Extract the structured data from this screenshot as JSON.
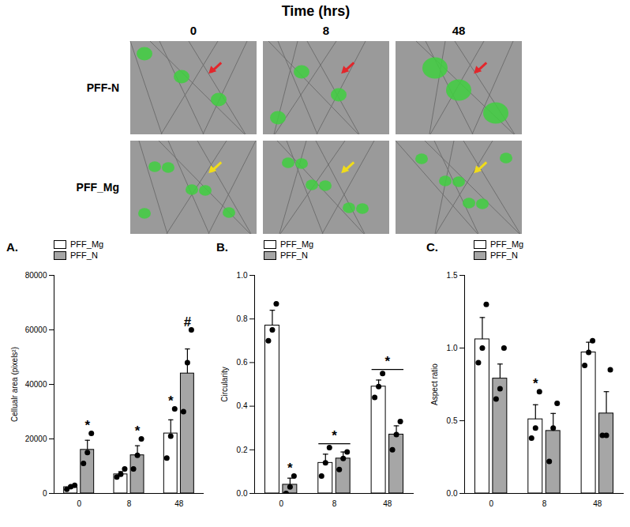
{
  "image_panel": {
    "title": "Time (hrs)",
    "columns": [
      "0",
      "8",
      "48"
    ],
    "rows": [
      "PFF-N",
      "PFF_Mg"
    ]
  },
  "chart_data": [
    {
      "type": "bar",
      "title": "A.",
      "ylabel": "Cellualr area (pixels²)",
      "categories": [
        "0",
        "8",
        "48"
      ],
      "ylim": [
        0,
        80000
      ],
      "yticks": [
        0,
        20000,
        40000,
        60000,
        80000
      ],
      "legend": "top",
      "series": [
        {
          "name": "PFF_Mg",
          "color": "#ffffff",
          "values": [
            2300,
            7000,
            22000
          ],
          "errors": [
            500,
            1000,
            5000
          ],
          "points": [
            [
              1500,
              2500,
              3000
            ],
            [
              6000,
              7000,
              9000
            ],
            [
              13000,
              21000,
              31000
            ]
          ]
        },
        {
          "name": "PFF_N",
          "color": "#a6a6a6",
          "values": [
            16000,
            14000,
            44000
          ],
          "errors": [
            3500,
            3500,
            9000
          ],
          "points": [
            [
              11000,
              15000,
              22000
            ],
            [
              9000,
              14000,
              20000
            ],
            [
              30000,
              48000,
              60000
            ]
          ]
        }
      ],
      "annotations": [
        {
          "category": "0",
          "series": [
            "PFF_N"
          ],
          "text": "*"
        },
        {
          "category": "8",
          "series": [
            "PFF_N"
          ],
          "text": "*"
        },
        {
          "category": "48",
          "series": [
            "PFF_Mg"
          ],
          "text": "*"
        },
        {
          "category": "48",
          "series": [
            "PFF_N"
          ],
          "text": "#"
        }
      ]
    },
    {
      "type": "bar",
      "title": "B.",
      "ylabel": "Circularity",
      "categories": [
        "0",
        "8",
        "48"
      ],
      "ylim": [
        0,
        1
      ],
      "yticks": [
        {
          "value": 0,
          "label": "0.0"
        },
        {
          "value": 0.2,
          "label": "0.2"
        },
        {
          "value": 0.4,
          "label": "0.4"
        },
        {
          "value": 0.6,
          "label": "0.6"
        },
        {
          "value": 0.8,
          "label": "0.8"
        },
        {
          "value": 1,
          "label": "1.0"
        }
      ],
      "legend": "top",
      "series": [
        {
          "name": "PFF_Mg",
          "color": "#ffffff",
          "values": [
            0.77,
            0.14,
            0.49
          ],
          "errors": [
            0.07,
            0.04,
            0.03
          ],
          "points": [
            [
              0.7,
              0.75,
              0.87
            ],
            [
              0.08,
              0.14,
              0.21
            ],
            [
              0.44,
              0.49,
              0.55
            ]
          ]
        },
        {
          "name": "PFF_N",
          "color": "#a6a6a6",
          "values": [
            0.04,
            0.16,
            0.27
          ],
          "errors": [
            0.03,
            0.03,
            0.04
          ],
          "points": [
            [
              0.0,
              0.03,
              0.08
            ],
            [
              0.11,
              0.16,
              0.19
            ],
            [
              0.2,
              0.27,
              0.33
            ]
          ]
        }
      ],
      "annotations": [
        {
          "category": "0",
          "series": [
            "PFF_N"
          ],
          "text": "*"
        },
        {
          "category": "8",
          "series": [
            "PFF_Mg",
            "PFF_N"
          ],
          "text": "*"
        },
        {
          "category": "48",
          "series": [
            "PFF_Mg",
            "PFF_N"
          ],
          "text": "*"
        }
      ]
    },
    {
      "type": "bar",
      "title": "C.",
      "ylabel": "Aspect ratio",
      "categories": [
        "0",
        "8",
        "48"
      ],
      "ylim": [
        0,
        1.5
      ],
      "yticks": [
        {
          "value": 0,
          "label": "0.0"
        },
        {
          "value": 0.5,
          "label": "0.5"
        },
        {
          "value": 1,
          "label": "1.0"
        },
        {
          "value": 1.5,
          "label": "1.5"
        }
      ],
      "legend": "top",
      "series": [
        {
          "name": "PFF_Mg",
          "color": "#ffffff",
          "values": [
            1.06,
            0.51,
            0.97
          ],
          "errors": [
            0.15,
            0.1,
            0.07
          ],
          "points": [
            [
              0.9,
              1.0,
              1.3
            ],
            [
              0.38,
              0.45,
              0.7
            ],
            [
              0.88,
              0.97,
              1.05
            ]
          ]
        },
        {
          "name": "PFF_N",
          "color": "#a6a6a6",
          "values": [
            0.79,
            0.43,
            0.55
          ],
          "errors": [
            0.1,
            0.12,
            0.15
          ],
          "points": [
            [
              0.65,
              0.72,
              1.0
            ],
            [
              0.22,
              0.45,
              0.62
            ],
            [
              0.4,
              0.4,
              0.85
            ]
          ]
        }
      ],
      "annotations": [
        {
          "category": "8",
          "series": [
            "PFF_Mg"
          ],
          "text": "*"
        }
      ]
    }
  ]
}
